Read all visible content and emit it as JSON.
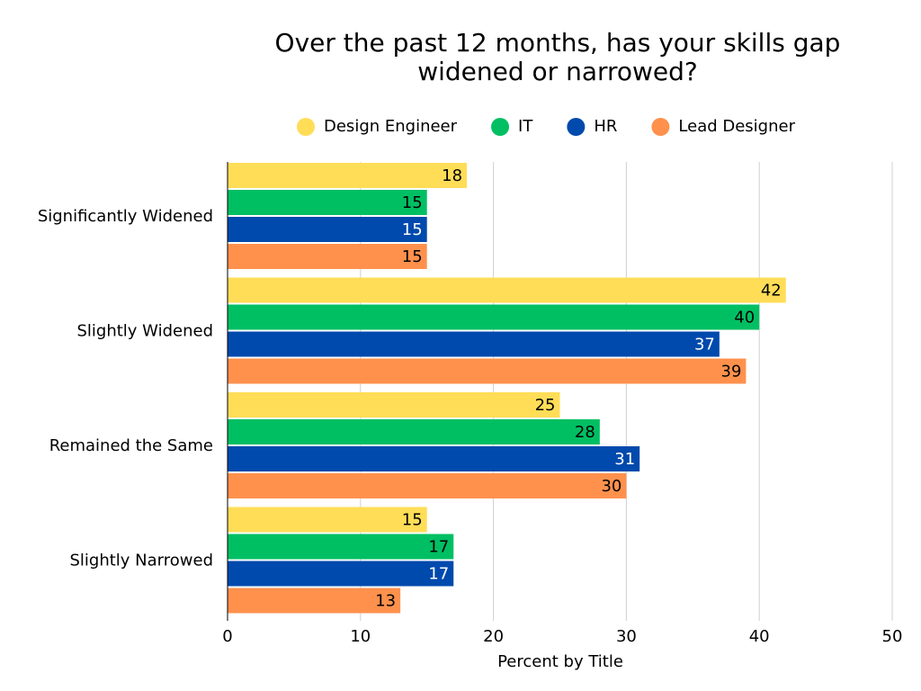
{
  "chart_data": {
    "type": "barh",
    "title": "Over the past 12 months, has your skills gap widened or narrowed?",
    "x_label": "Percent by Title",
    "categories": [
      "Significantly Widened",
      "Slightly Widened",
      "Remained the Same",
      "Slightly Narrowed"
    ],
    "series": [
      {
        "name": "Design Engineer",
        "color": "#ffdd57",
        "values": [
          18,
          42,
          25,
          15
        ]
      },
      {
        "name": "IT",
        "color": "#00bf63",
        "values": [
          15,
          40,
          28,
          17
        ]
      },
      {
        "name": "HR",
        "color": "#004aad",
        "values": [
          15,
          37,
          31,
          17
        ]
      },
      {
        "name": "Lead Designer",
        "color": "#ff914d",
        "values": [
          15,
          39,
          30,
          13
        ]
      }
    ],
    "xlim": [
      0,
      50
    ],
    "xticks": [
      0,
      10,
      20,
      30,
      40,
      50
    ],
    "grid": true,
    "legend": "top"
  }
}
